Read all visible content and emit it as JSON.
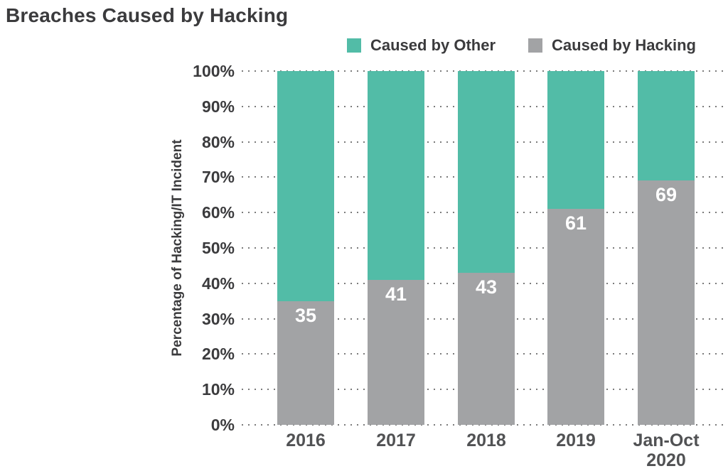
{
  "title": "Breaches Caused by Hacking",
  "legend": {
    "items": [
      {
        "label": "Caused by Other",
        "color": "#52bca7"
      },
      {
        "label": "Caused by Hacking",
        "color": "#a2a3a5"
      }
    ]
  },
  "chart_data": {
    "type": "bar",
    "stacked": true,
    "title": "Breaches Caused by Hacking",
    "categories": [
      "2016",
      "2017",
      "2018",
      "2019",
      "Jan-Oct 2020"
    ],
    "series": [
      {
        "name": "Caused by Hacking",
        "color": "#a2a3a5",
        "values": [
          35,
          41,
          43,
          61,
          69
        ]
      },
      {
        "name": "Caused by Other",
        "color": "#52bca7",
        "values": [
          65,
          59,
          57,
          39,
          31
        ]
      }
    ],
    "value_labels": [
      "35",
      "41",
      "43",
      "61",
      "69"
    ],
    "xlabel": "",
    "ylabel": "Percentage of Hacking/IT Incident",
    "yticks": [
      "0%",
      "10%",
      "20%",
      "30%",
      "40%",
      "50%",
      "60%",
      "70%",
      "80%",
      "90%",
      "100%"
    ],
    "ylim": [
      0,
      100
    ],
    "grid": "dotted-horizontal",
    "legend_position": "top"
  },
  "colors": {
    "bar_hacking": "#a2a3a5",
    "bar_other": "#52bca7",
    "text_dark": "#3b3b3d",
    "text_xticks": "#515254",
    "gridline": "#7b7b7b",
    "value_label": "#ffffff",
    "background": "#ffffff"
  }
}
